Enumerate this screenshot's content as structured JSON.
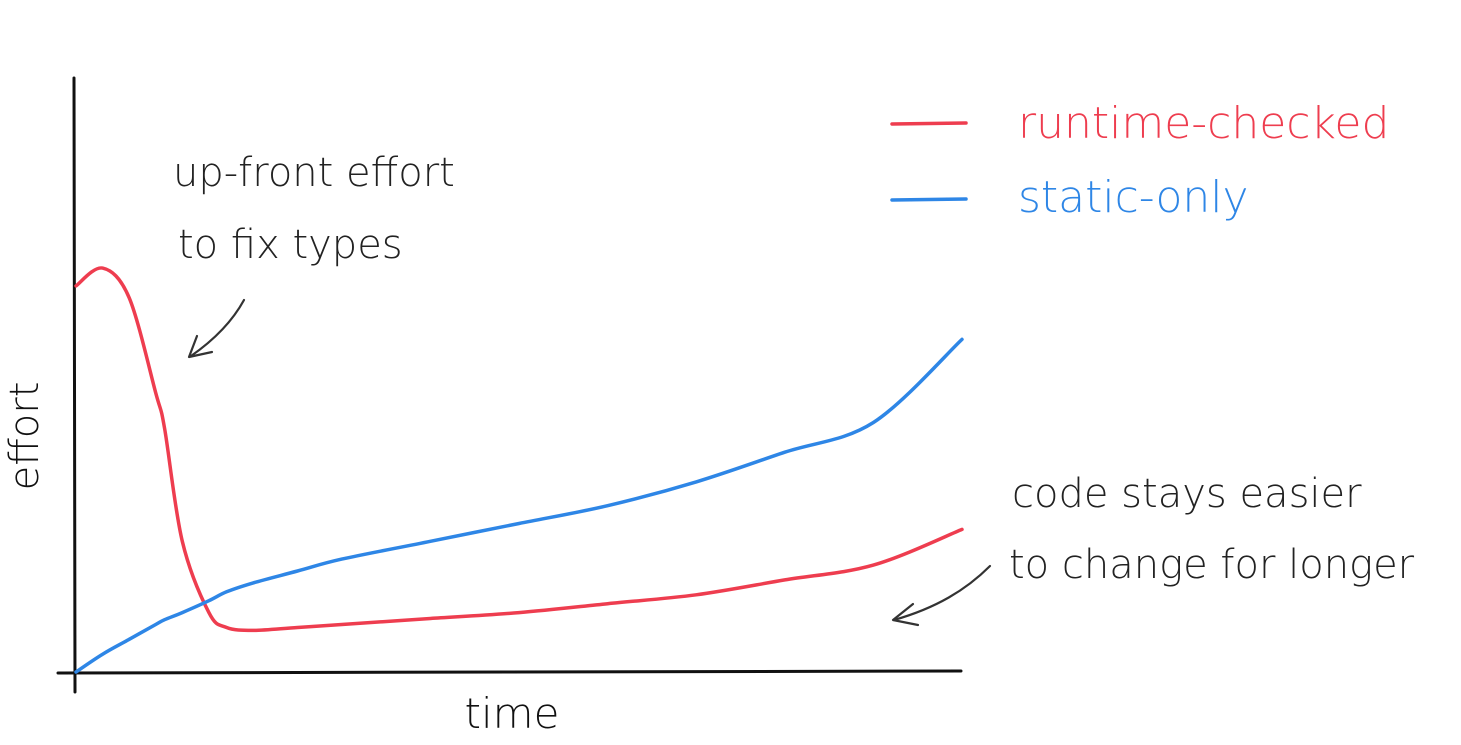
{
  "chart_data": {
    "type": "line",
    "xlabel": "time",
    "ylabel": "effort",
    "x": [
      0,
      0.03,
      0.06,
      0.09,
      0.1,
      0.12,
      0.15,
      0.17,
      0.2,
      0.25,
      0.3,
      0.4,
      0.5,
      0.6,
      0.7,
      0.8,
      0.9,
      1.0
    ],
    "series": [
      {
        "name": "runtime-checked",
        "color": "#ee3d4f",
        "values": [
          0.65,
          0.68,
          0.63,
          0.47,
          0.41,
          0.22,
          0.1,
          0.075,
          0.07,
          0.075,
          0.08,
          0.09,
          0.1,
          0.115,
          0.13,
          0.155,
          0.18,
          0.24
        ]
      },
      {
        "name": "static-only",
        "color": "#2e86e6",
        "values": [
          0.0,
          0.03,
          0.055,
          0.08,
          0.088,
          0.1,
          0.12,
          0.135,
          0.15,
          0.17,
          0.19,
          0.22,
          0.25,
          0.28,
          0.32,
          0.37,
          0.42,
          0.56
        ]
      }
    ],
    "ylim": [
      0,
      1
    ],
    "xlim": [
      0,
      1
    ],
    "legend": "top-right",
    "grid": false,
    "axis_ticks": false,
    "annotations": [
      {
        "text_lines": [
          "up-front effort",
          "to fix types"
        ]
      },
      {
        "text_lines": [
          "code stays easier",
          "to change for longer"
        ]
      }
    ]
  }
}
